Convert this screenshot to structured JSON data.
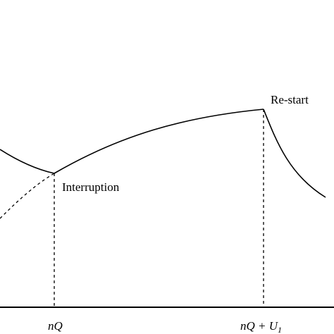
{
  "diagram": {
    "annotations": {
      "restart": "Re-start",
      "interruption": "Interruption"
    },
    "x_ticks": {
      "nq": "nQ",
      "nq_plus_u1": "nQ + U",
      "subscript": "1"
    }
  }
}
